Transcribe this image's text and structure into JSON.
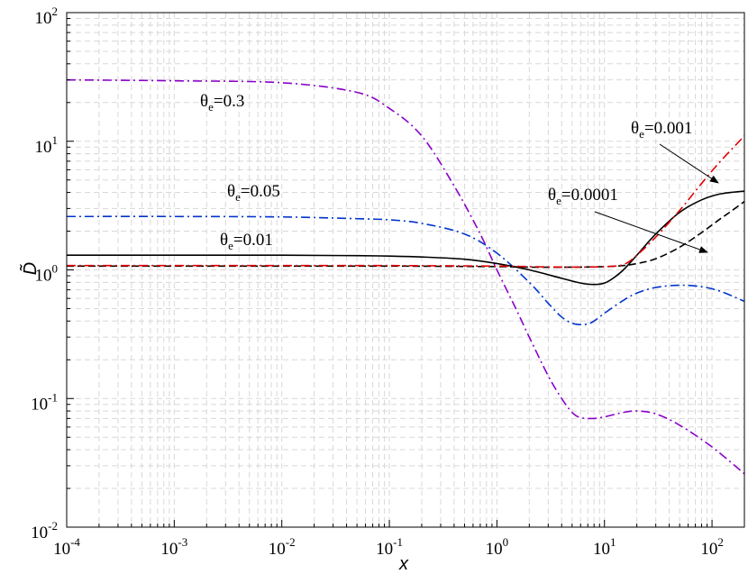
{
  "chart_data": {
    "type": "line",
    "title": "",
    "xlabel": "x",
    "ylabel": "D̃",
    "xscale": "log",
    "yscale": "log",
    "xlim": [
      0.0001,
      200
    ],
    "ylim": [
      0.01,
      100
    ],
    "grid": true,
    "x_ticks": [
      {
        "base": "10",
        "exp": "-4"
      },
      {
        "base": "10",
        "exp": "-3"
      },
      {
        "base": "10",
        "exp": "-2"
      },
      {
        "base": "10",
        "exp": "-1"
      },
      {
        "base": "10",
        "exp": "0"
      },
      {
        "base": "10",
        "exp": "1"
      },
      {
        "base": "10",
        "exp": "2"
      }
    ],
    "y_ticks": [
      {
        "base": "10",
        "exp": "-2"
      },
      {
        "base": "10",
        "exp": "-1"
      },
      {
        "base": "10",
        "exp": "0"
      },
      {
        "base": "10",
        "exp": "1"
      },
      {
        "base": "10",
        "exp": "2"
      }
    ],
    "series": [
      {
        "name": "θe=0.3",
        "color": "#8B00C9",
        "style": "dashdot",
        "x": [
          0.0001,
          0.001,
          0.01,
          0.05,
          0.1,
          0.2,
          0.4,
          0.7,
          1.0,
          1.5,
          2.0,
          3.0,
          4.0,
          5.0,
          6.0,
          8.0,
          10,
          15,
          20,
          30,
          50,
          100,
          200
        ],
        "y": [
          30,
          29.5,
          28.5,
          24,
          18,
          11,
          4.5,
          1.9,
          1.0,
          0.5,
          0.3,
          0.15,
          0.1,
          0.078,
          0.071,
          0.07,
          0.072,
          0.078,
          0.08,
          0.076,
          0.062,
          0.042,
          0.026
        ]
      },
      {
        "name": "θe=0.05",
        "color": "#0033CC",
        "style": "dashdot",
        "x": [
          0.0001,
          0.001,
          0.01,
          0.05,
          0.1,
          0.2,
          0.5,
          1.0,
          2.0,
          3.0,
          4.0,
          5.0,
          6.0,
          7.0,
          8.0,
          10,
          15,
          20,
          30,
          50,
          80,
          120,
          200
        ],
        "y": [
          2.6,
          2.6,
          2.58,
          2.5,
          2.45,
          2.3,
          1.9,
          1.35,
          0.8,
          0.55,
          0.43,
          0.385,
          0.375,
          0.38,
          0.4,
          0.46,
          0.58,
          0.66,
          0.73,
          0.76,
          0.74,
          0.68,
          0.57
        ]
      },
      {
        "name": "θe=0.01",
        "color": "#000000",
        "style": "solid",
        "x": [
          0.0001,
          0.001,
          0.01,
          0.05,
          0.1,
          0.2,
          0.5,
          1.0,
          2.0,
          4.0,
          6.0,
          8.0,
          10,
          12,
          15,
          20,
          30,
          50,
          80,
          120,
          200
        ],
        "y": [
          1.3,
          1.3,
          1.3,
          1.29,
          1.28,
          1.26,
          1.21,
          1.12,
          1.0,
          0.86,
          0.79,
          0.77,
          0.79,
          0.86,
          1.0,
          1.3,
          1.9,
          2.8,
          3.5,
          3.9,
          4.1
        ]
      },
      {
        "name": "θe=0.0001",
        "color": "#000000",
        "style": "dashed",
        "x": [
          0.0001,
          0.001,
          0.01,
          0.1,
          1.0,
          2.0,
          5.0,
          10,
          15,
          20,
          30,
          50,
          80,
          120,
          150,
          200
        ],
        "y": [
          1.07,
          1.07,
          1.07,
          1.07,
          1.06,
          1.05,
          1.05,
          1.06,
          1.08,
          1.12,
          1.22,
          1.5,
          1.95,
          2.5,
          2.85,
          3.4
        ]
      },
      {
        "name": "θe=0.001",
        "color": "#E00000",
        "style": "dashdot",
        "x": [
          0.0001,
          0.001,
          0.01,
          0.1,
          1.0,
          2.0,
          5.0,
          10,
          15,
          20,
          30,
          50,
          80,
          120,
          200
        ],
        "y": [
          1.08,
          1.08,
          1.08,
          1.08,
          1.07,
          1.06,
          1.05,
          1.06,
          1.1,
          1.3,
          1.8,
          2.9,
          4.7,
          7.0,
          11
        ]
      }
    ],
    "annotations": [
      {
        "base": "θ",
        "sub": "e",
        "rest": "=0.3"
      },
      {
        "base": "θ",
        "sub": "e",
        "rest": "=0.05"
      },
      {
        "base": "θ",
        "sub": "e",
        "rest": "=0.01"
      },
      {
        "base": "θ",
        "sub": "e",
        "rest": "=0.0001"
      },
      {
        "base": "θ",
        "sub": "e",
        "rest": "=0.001"
      }
    ]
  }
}
